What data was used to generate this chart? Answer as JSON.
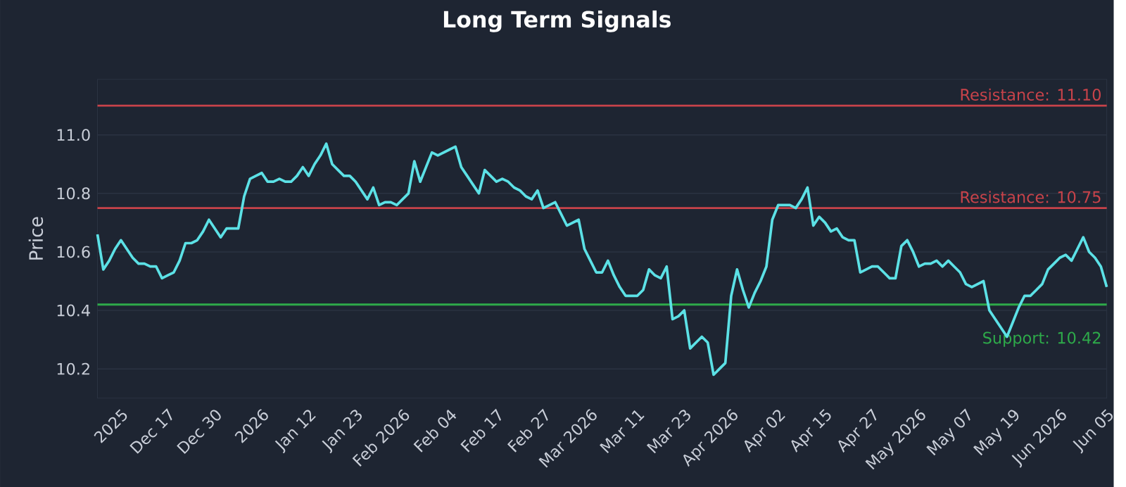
{
  "chart_data": {
    "type": "line",
    "title": "Long Term Signals",
    "ylabel": "Price",
    "categories": [
      null,
      null,
      null,
      null,
      "2025",
      null,
      null,
      null,
      null,
      null,
      null,
      null,
      "Dec 17",
      null,
      null,
      null,
      null,
      null,
      null,
      null,
      "Dec 30",
      null,
      null,
      null,
      null,
      null,
      null,
      null,
      "2026",
      null,
      null,
      null,
      null,
      null,
      null,
      null,
      "Jan 12",
      null,
      null,
      null,
      null,
      null,
      null,
      null,
      "Jan 23",
      null,
      null,
      null,
      null,
      null,
      null,
      null,
      "Feb 2026",
      null,
      null,
      null,
      null,
      null,
      null,
      null,
      "Feb 04",
      null,
      null,
      null,
      null,
      null,
      null,
      null,
      "Feb 17",
      null,
      null,
      null,
      null,
      null,
      null,
      null,
      "Feb 27",
      null,
      null,
      null,
      null,
      null,
      null,
      null,
      "Mar 2026",
      null,
      null,
      null,
      null,
      null,
      null,
      null,
      "Mar 11",
      null,
      null,
      null,
      null,
      null,
      null,
      null,
      "Mar 23",
      null,
      null,
      null,
      null,
      null,
      null,
      null,
      "Apr 2026",
      null,
      null,
      null,
      null,
      null,
      null,
      null,
      "Apr 02",
      null,
      null,
      null,
      null,
      null,
      null,
      null,
      "Apr 15",
      null,
      null,
      null,
      null,
      null,
      null,
      null,
      "Apr 27",
      null,
      null,
      null,
      null,
      null,
      null,
      null,
      "May 2026",
      null,
      null,
      null,
      null,
      null,
      null,
      null,
      "May 07",
      null,
      null,
      null,
      null,
      null,
      null,
      null,
      "May 19",
      null,
      null,
      null,
      null,
      null,
      null,
      null,
      "Jun 2026",
      null,
      null,
      null,
      null,
      null,
      null,
      null,
      "Jun 05"
    ],
    "series": [
      {
        "color": "#5ce1e6",
        "values": [
          10.66,
          10.54,
          10.57,
          10.61,
          10.64,
          10.61,
          10.58,
          10.56,
          10.56,
          10.55,
          10.55,
          10.51,
          10.52,
          10.53,
          10.57,
          10.63,
          10.63,
          10.64,
          10.67,
          10.71,
          10.68,
          10.65,
          10.68,
          10.68,
          10.68,
          10.79,
          10.85,
          10.86,
          10.87,
          10.84,
          10.84,
          10.85,
          10.84,
          10.84,
          10.86,
          10.89,
          10.86,
          10.9,
          10.93,
          10.97,
          10.9,
          10.88,
          10.86,
          10.86,
          10.84,
          10.81,
          10.78,
          10.82,
          10.76,
          10.77,
          10.77,
          10.76,
          10.78,
          10.8,
          10.91,
          10.84,
          10.89,
          10.94,
          10.93,
          10.94,
          10.95,
          10.96,
          10.89,
          10.86,
          10.83,
          10.8,
          10.88,
          10.86,
          10.84,
          10.85,
          10.84,
          10.82,
          10.81,
          10.79,
          10.78,
          10.81,
          10.75,
          10.76,
          10.77,
          10.73,
          10.69,
          10.7,
          10.71,
          10.61,
          10.57,
          10.53,
          10.53,
          10.57,
          10.52,
          10.48,
          10.45,
          10.45,
          10.45,
          10.47,
          10.54,
          10.52,
          10.51,
          10.55,
          10.37,
          10.38,
          10.4,
          10.27,
          10.29,
          10.31,
          10.29,
          10.18,
          10.2,
          10.22,
          10.45,
          10.54,
          10.47,
          10.41,
          10.46,
          10.5,
          10.55,
          10.71,
          10.76,
          10.76,
          10.76,
          10.75,
          10.78,
          10.82,
          10.69,
          10.72,
          10.7,
          10.67,
          10.68,
          10.65,
          10.64,
          10.64,
          10.53,
          10.54,
          10.55,
          10.55,
          10.53,
          10.51,
          10.51,
          10.62,
          10.64,
          10.6,
          10.55,
          10.56,
          10.56,
          10.57,
          10.55,
          10.57,
          10.55,
          10.53,
          10.49,
          10.48,
          10.49,
          10.5,
          10.4,
          10.37,
          10.34,
          10.31,
          10.36,
          10.41,
          10.45,
          10.45,
          10.47,
          10.49,
          10.54,
          10.56,
          10.58,
          10.59,
          10.57,
          10.61,
          10.65,
          10.6,
          10.58,
          10.55,
          10.48
        ]
      }
    ],
    "ylim": [
      10.1,
      11.19
    ],
    "yticks": [
      10.2,
      10.4,
      10.6,
      10.8,
      {
        "value": 11,
        "label": "11.0"
      }
    ],
    "grid": "y",
    "ref_lines": [
      {
        "axis": "y",
        "value": 11.1,
        "label": "Resistance: 11.10",
        "color": "#c8434a"
      },
      {
        "axis": "y",
        "value": 10.75,
        "label": "Resistance: 10.75",
        "color": "#c8434a"
      },
      {
        "axis": "y",
        "value": 10.42,
        "label": "Support: 10.42",
        "color": "#2eaa4a"
      }
    ]
  }
}
